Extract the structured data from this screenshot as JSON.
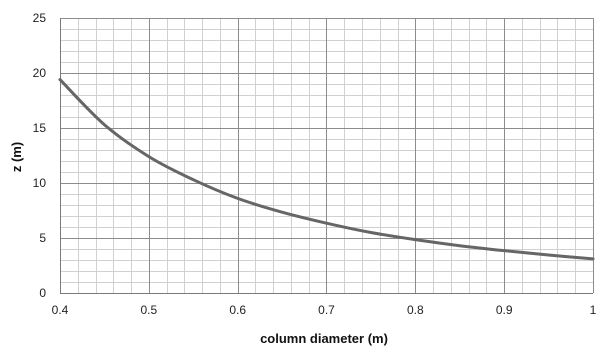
{
  "chart_data": {
    "type": "line",
    "title": "",
    "xlabel": "column diameter (m)",
    "ylabel": "z (m)",
    "xlim": [
      0.4,
      1
    ],
    "ylim": [
      0,
      25
    ],
    "x_ticks": [
      "0.4",
      "0.5",
      "0.6",
      "0.7",
      "0.8",
      "0.9",
      "1"
    ],
    "y_ticks": [
      "0",
      "5",
      "10",
      "15",
      "20",
      "25"
    ],
    "x_major_step": 0.1,
    "x_minor_step": 0.02,
    "y_major_step": 5,
    "y_minor_step": 1,
    "grid": true,
    "legend": "none",
    "series": [
      {
        "color": "#666666",
        "x": [
          0.4,
          0.45,
          0.5,
          0.55,
          0.6,
          0.65,
          0.7,
          0.75,
          0.8,
          0.85,
          0.9,
          0.95,
          1.0
        ],
        "y": [
          19.4,
          15.3,
          12.4,
          10.3,
          8.6,
          7.35,
          6.35,
          5.5,
          4.85,
          4.3,
          3.85,
          3.45,
          3.1
        ]
      }
    ]
  }
}
